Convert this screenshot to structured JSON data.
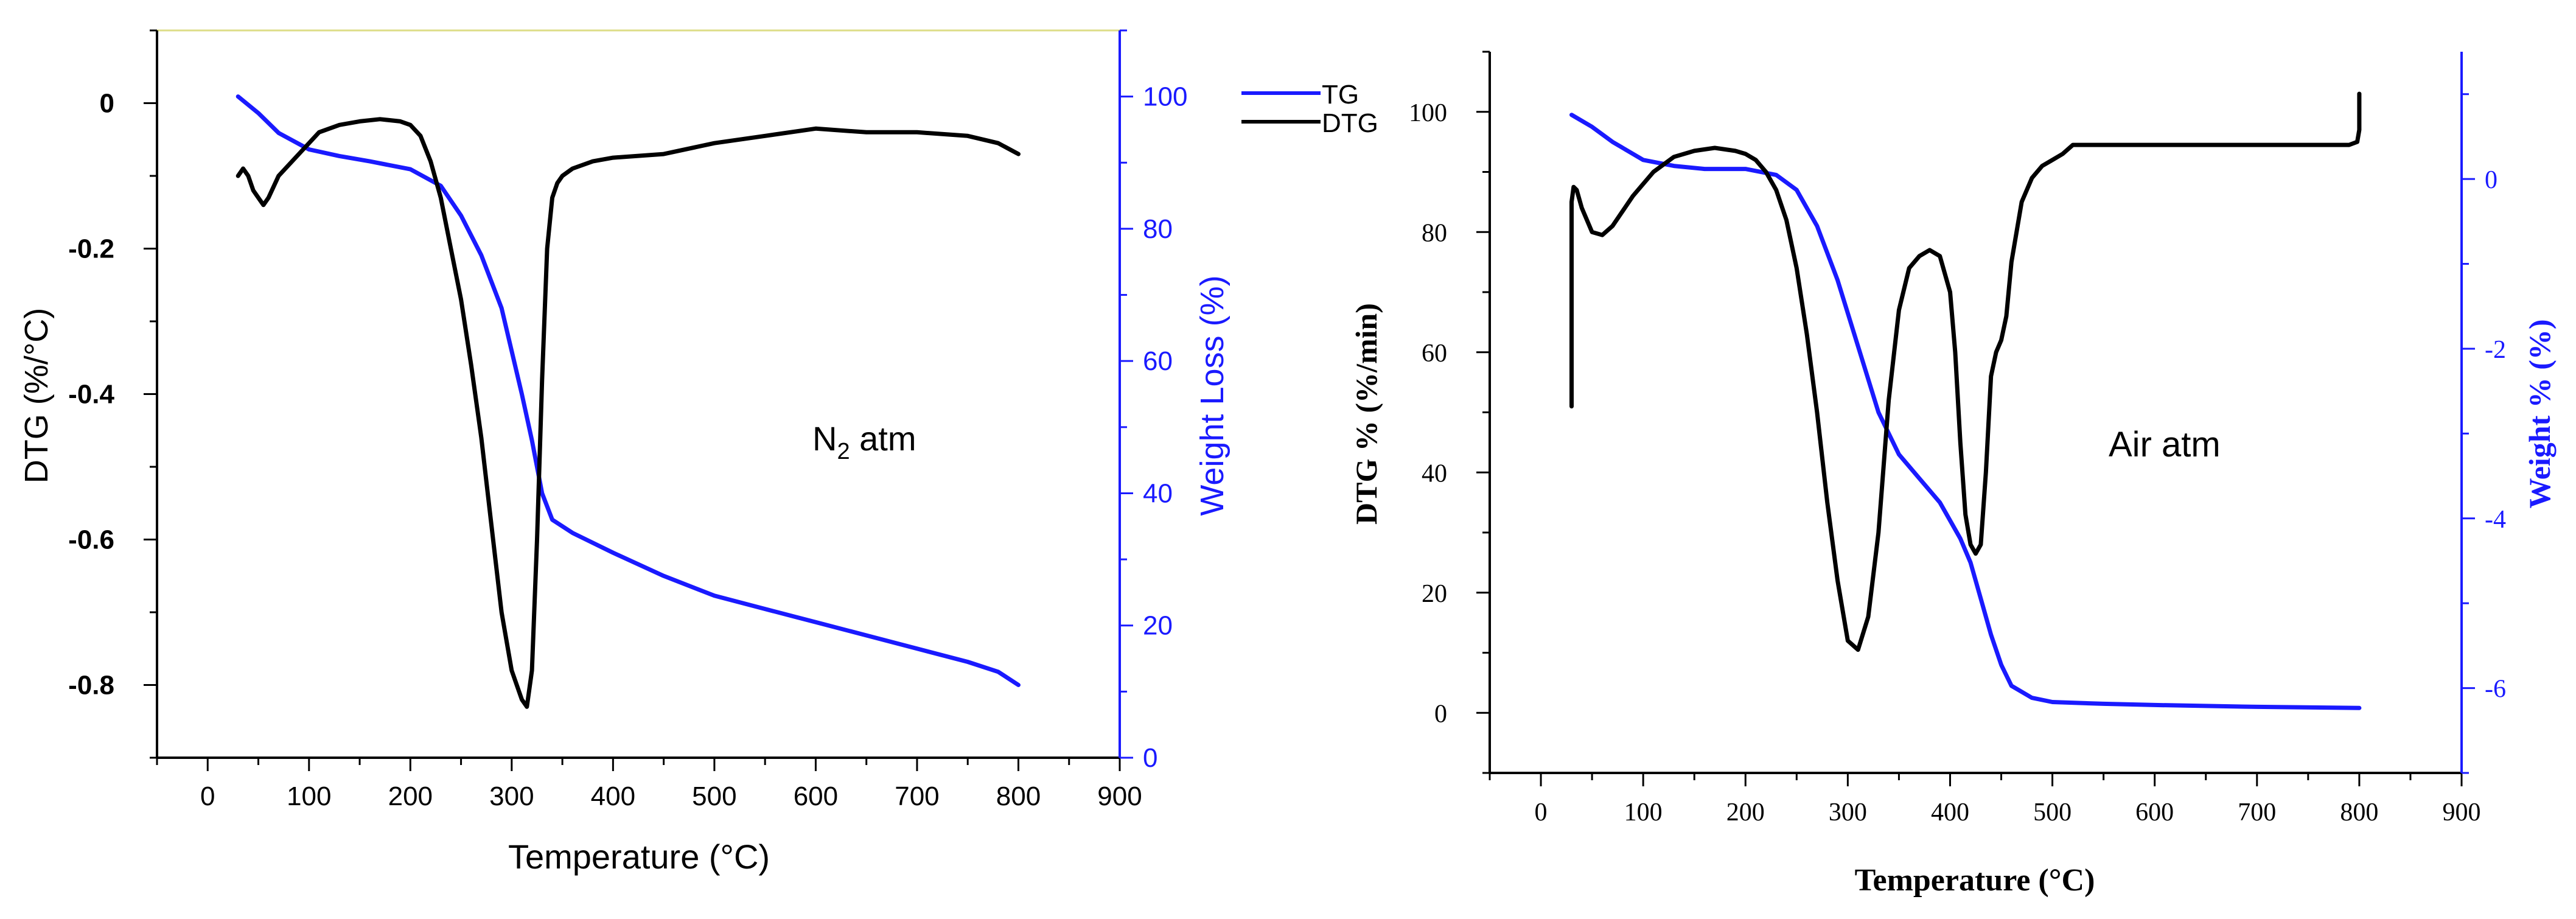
{
  "chart_data": [
    {
      "type": "line",
      "panel": "left",
      "atmosphere_label": "N",
      "atmosphere_sub": "2",
      "atmosphere_suffix": " atm",
      "xlabel": "Temperature (°C)",
      "ylabel_left": "DTG (%/°C)",
      "ylabel_right": "Weight Loss (%)",
      "xlim": [
        -50,
        900
      ],
      "xticks": [
        0,
        100,
        200,
        300,
        400,
        500,
        600,
        700,
        800,
        900
      ],
      "ylim_left": [
        -0.9,
        0.1
      ],
      "yticks_left": [
        0,
        -0.2,
        -0.4,
        -0.6,
        -0.8
      ],
      "ytick_labels_left": [
        "0",
        "-0.2",
        "-0.4",
        "-0.6",
        "-0.8"
      ],
      "ylim_right": [
        0,
        110
      ],
      "yticks_right": [
        0,
        20,
        40,
        60,
        80,
        100
      ],
      "legend": [
        {
          "label": "TG",
          "color": "#1a1aff"
        },
        {
          "label": "DTG",
          "color": "#000000"
        }
      ],
      "series": [
        {
          "name": "TG",
          "axis": "right",
          "color": "#1a1aff",
          "x": [
            30,
            50,
            70,
            100,
            130,
            160,
            200,
            230,
            250,
            270,
            290,
            310,
            320,
            330,
            340,
            360,
            400,
            450,
            500,
            550,
            600,
            650,
            700,
            750,
            780,
            800
          ],
          "y": [
            100,
            97.5,
            94.5,
            92,
            91,
            90.2,
            89,
            86.5,
            82,
            76,
            68,
            55,
            48,
            40,
            36,
            34,
            31,
            27.5,
            24.5,
            22.5,
            20.5,
            18.5,
            16.5,
            14.5,
            13,
            11
          ]
        },
        {
          "name": "DTG",
          "axis": "left",
          "color": "#000000",
          "x": [
            30,
            35,
            40,
            45,
            50,
            55,
            60,
            70,
            90,
            110,
            130,
            150,
            170,
            190,
            200,
            210,
            220,
            230,
            240,
            250,
            260,
            270,
            280,
            290,
            300,
            310,
            315,
            320,
            325,
            330,
            335,
            340,
            345,
            350,
            360,
            380,
            400,
            450,
            500,
            550,
            600,
            650,
            700,
            750,
            780,
            800
          ],
          "y": [
            -0.1,
            -0.09,
            -0.1,
            -0.12,
            -0.13,
            -0.14,
            -0.13,
            -0.1,
            -0.07,
            -0.04,
            -0.03,
            -0.025,
            -0.022,
            -0.025,
            -0.03,
            -0.045,
            -0.08,
            -0.13,
            -0.2,
            -0.27,
            -0.36,
            -0.46,
            -0.58,
            -0.7,
            -0.78,
            -0.82,
            -0.83,
            -0.78,
            -0.6,
            -0.38,
            -0.2,
            -0.13,
            -0.11,
            -0.1,
            -0.09,
            -0.08,
            -0.075,
            -0.07,
            -0.055,
            -0.045,
            -0.035,
            -0.04,
            -0.04,
            -0.045,
            -0.055,
            -0.07
          ]
        }
      ]
    },
    {
      "type": "line",
      "panel": "right",
      "atmosphere_label": "Air atm",
      "xlabel": "Temperature (°C)",
      "ylabel_left": "DTG % (%/min)",
      "ylabel_right": "Weight % (%)",
      "xlim": [
        -50,
        900
      ],
      "xticks": [
        0,
        100,
        200,
        300,
        400,
        500,
        600,
        700,
        800,
        900
      ],
      "ylim_left": [
        -10,
        110
      ],
      "yticks_left": [
        0,
        20,
        40,
        60,
        80,
        100
      ],
      "ylim_right": [
        -7,
        1.5
      ],
      "yticks_right": [
        -6,
        -4,
        -2,
        0
      ],
      "series": [
        {
          "name": "TG",
          "axis": "left",
          "color": "#1a1aff",
          "x": [
            30,
            50,
            70,
            100,
            130,
            160,
            200,
            230,
            250,
            270,
            290,
            310,
            330,
            350,
            370,
            390,
            410,
            420,
            430,
            440,
            450,
            460,
            480,
            500,
            550,
            600,
            700,
            800
          ],
          "y": [
            99.5,
            97.5,
            95,
            92,
            91,
            90.5,
            90.5,
            89.5,
            87,
            81,
            72,
            61,
            50,
            43,
            39,
            35,
            29,
            25,
            19,
            13,
            8,
            4.5,
            2.5,
            1.8,
            1.5,
            1.3,
            1,
            0.8
          ]
        },
        {
          "name": "DTG",
          "axis": "left",
          "color": "#000000",
          "x": [
            30,
            30,
            32,
            35,
            40,
            50,
            60,
            70,
            90,
            110,
            130,
            150,
            170,
            190,
            200,
            210,
            220,
            230,
            240,
            250,
            260,
            270,
            280,
            290,
            300,
            310,
            320,
            330,
            340,
            350,
            360,
            370,
            380,
            390,
            400,
            405,
            410,
            415,
            420,
            425,
            430,
            435,
            440,
            445,
            450,
            455,
            460,
            470,
            480,
            490,
            500,
            510,
            520,
            550,
            600,
            700,
            790,
            798,
            800,
            800
          ],
          "y": [
            51,
            85,
            87.5,
            87,
            84,
            80,
            79.5,
            81,
            86,
            90,
            92.5,
            93.5,
            94,
            93.5,
            93,
            92,
            90,
            87,
            82,
            74,
            63,
            50,
            35,
            22,
            12,
            10.5,
            16,
            30,
            52,
            67,
            74,
            76,
            77,
            76,
            70,
            60,
            45,
            33,
            28,
            26.5,
            28,
            40,
            56,
            60,
            62,
            66,
            75,
            85,
            89,
            91,
            92,
            93,
            94.5,
            94.5,
            94.5,
            94.5,
            94.5,
            95,
            97,
            103
          ]
        }
      ]
    }
  ]
}
